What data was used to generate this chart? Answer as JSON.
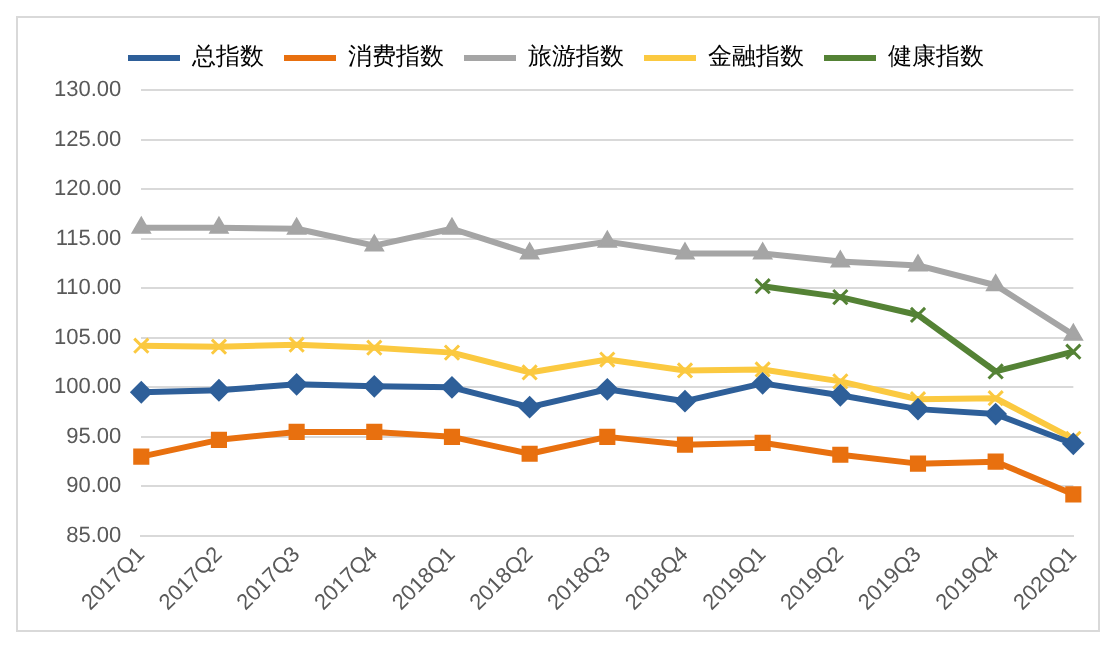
{
  "chart_data": {
    "type": "line",
    "categories": [
      "2017Q1",
      "2017Q2",
      "2017Q3",
      "2017Q4",
      "2018Q1",
      "2018Q2",
      "2018Q3",
      "2018Q4",
      "2019Q1",
      "2019Q2",
      "2019Q3",
      "2019Q4",
      "2020Q1"
    ],
    "series": [
      {
        "name": "总指数",
        "color": "#2e5f99",
        "marker": "diamond",
        "values": [
          99.5,
          99.7,
          100.3,
          100.1,
          100.0,
          98.0,
          99.8,
          98.6,
          100.4,
          99.2,
          97.8,
          97.3,
          94.3
        ]
      },
      {
        "name": "消费指数",
        "color": "#e8700f",
        "marker": "square",
        "values": [
          93.0,
          94.7,
          95.5,
          95.5,
          95.0,
          93.3,
          95.0,
          94.2,
          94.4,
          93.2,
          92.3,
          92.5,
          89.2
        ]
      },
      {
        "name": "旅游指数",
        "color": "#a5a5a5",
        "marker": "triangle",
        "values": [
          116.1,
          116.1,
          116.0,
          114.3,
          116.0,
          113.5,
          114.7,
          113.5,
          113.5,
          112.7,
          112.3,
          110.3,
          105.3
        ]
      },
      {
        "name": "金融指数",
        "color": "#fbc940",
        "marker": "cross",
        "values": [
          104.2,
          104.1,
          104.3,
          104.0,
          103.5,
          101.5,
          102.8,
          101.7,
          101.8,
          100.6,
          98.8,
          98.9,
          94.8
        ]
      },
      {
        "name": "健康指数",
        "color": "#548235",
        "marker": "cross",
        "values": [
          null,
          null,
          null,
          null,
          null,
          null,
          null,
          null,
          110.2,
          109.1,
          107.3,
          101.6,
          103.6
        ]
      }
    ],
    "ylim": [
      85,
      130
    ],
    "yticks": [
      {
        "value": 85,
        "label": "85.00"
      },
      {
        "value": 90,
        "label": "90.00"
      },
      {
        "value": 95,
        "label": "95.00"
      },
      {
        "value": 100,
        "label": "100.00"
      },
      {
        "value": 105,
        "label": "105.00"
      },
      {
        "value": 110,
        "label": "110.00"
      },
      {
        "value": 115,
        "label": "115.00"
      },
      {
        "value": 120,
        "label": "120.00"
      },
      {
        "value": 125,
        "label": "125.00"
      },
      {
        "value": 130,
        "label": "130.00"
      }
    ],
    "grid": "y",
    "legend": "top"
  }
}
